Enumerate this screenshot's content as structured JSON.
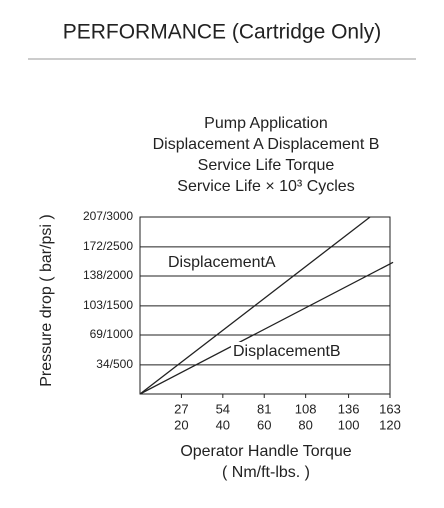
{
  "chart_data": {
    "type": "line",
    "title": "PERFORMANCE (Cartridge Only)",
    "subtitle": [
      "Pump  Application",
      "Displacement A Displacement B",
      "Service Life Torque",
      "Service Life × 10³ Cycles"
    ],
    "ylabel": "Pressure drop ( bar/psi )",
    "xlabel": [
      "Operator Handle Torque",
      "( Nm/ft-lbs. )"
    ],
    "xlim": [
      0,
      163
    ],
    "ylim": [
      0,
      207
    ],
    "xticks": [
      27,
      54,
      81,
      108,
      136,
      163
    ],
    "xticks_secondary": [
      20,
      40,
      60,
      80,
      100,
      120
    ],
    "yticks": [
      {
        "value": 34,
        "label": "34/500"
      },
      {
        "value": 69,
        "label": "69/1000"
      },
      {
        "value": 103,
        "label": "103/1500"
      },
      {
        "value": 138,
        "label": "138/2000"
      },
      {
        "value": 172,
        "label": "172/2500"
      },
      {
        "value": 207,
        "label": "207/3000"
      }
    ],
    "grid": true,
    "series": [
      {
        "name": "DisplacementA",
        "color": "#222222",
        "x": [
          0,
          150
        ],
        "values": [
          0,
          207
        ]
      },
      {
        "name": "DisplacementB",
        "color": "#222222",
        "x": [
          0,
          165
        ],
        "values": [
          0,
          154
        ]
      }
    ]
  }
}
